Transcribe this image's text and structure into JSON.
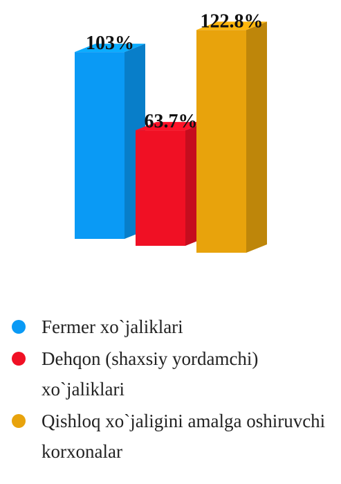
{
  "chart_data": {
    "type": "bar3d",
    "series": [
      {
        "name": "Fermer xo`jaliklari",
        "color": "#0a9af5",
        "values": [
          103
        ],
        "value_labels": [
          "103%"
        ]
      },
      {
        "name": "Dehqon (shaxsiy yordamchi) xo`jaliklari",
        "color": "#f01024",
        "values": [
          63.7
        ],
        "value_labels": [
          "63.7%"
        ]
      },
      {
        "name": "Qishloq xo`jaligini amalga oshiruvchi korxonalar",
        "color": "#e8a30c",
        "values": [
          122.8
        ],
        "value_labels": [
          "122.8%"
        ]
      }
    ],
    "legend": "bottom"
  }
}
